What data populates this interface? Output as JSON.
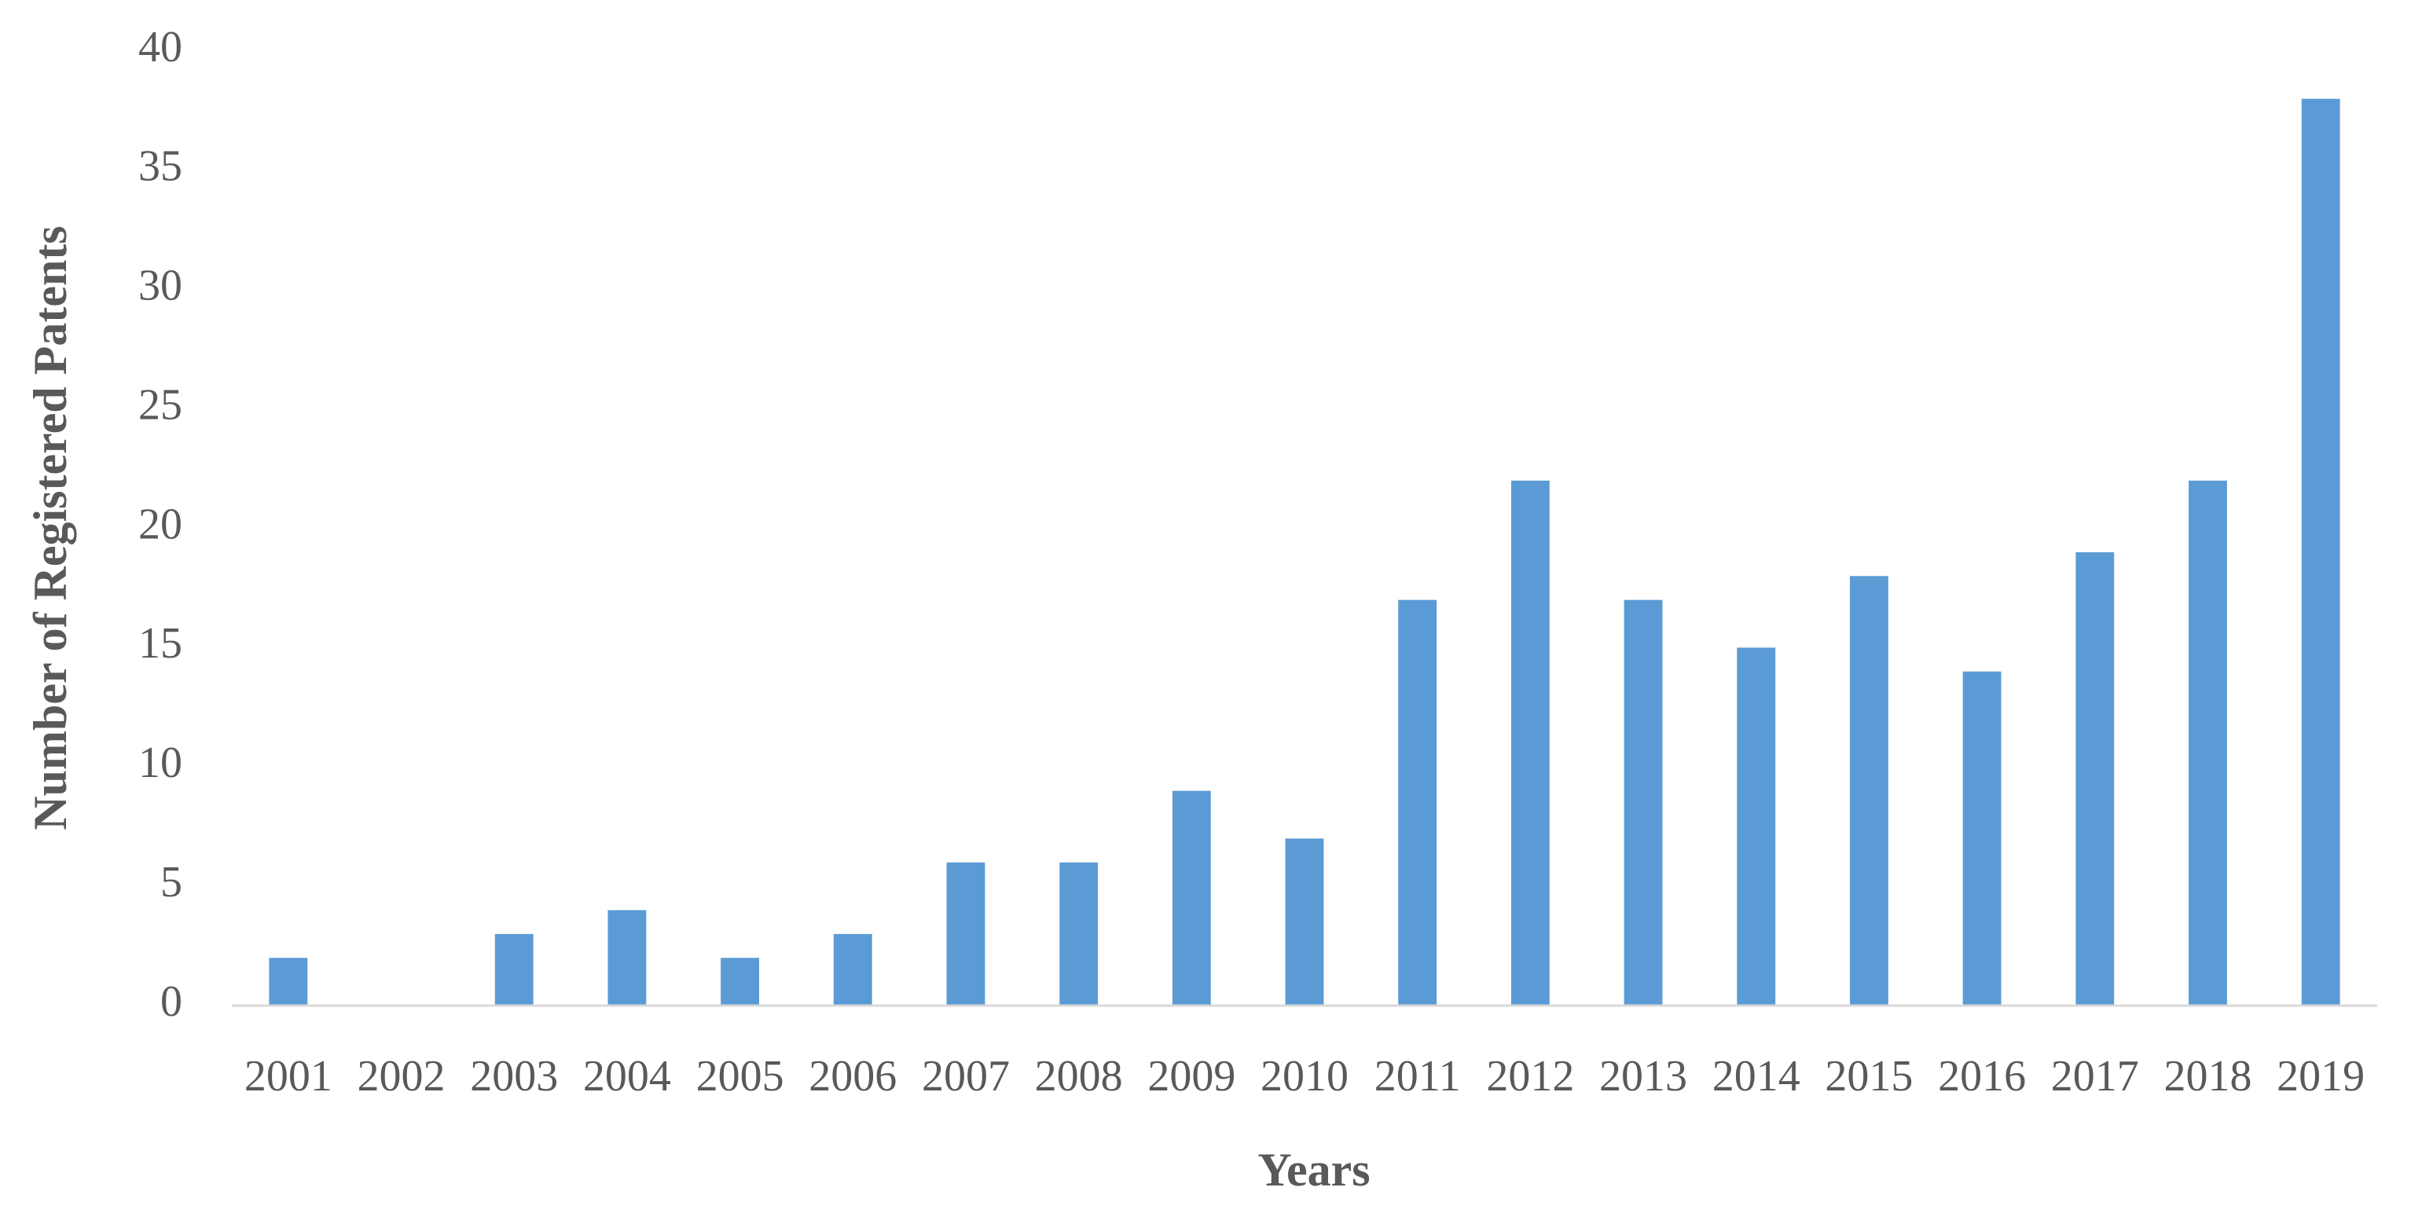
{
  "chart_data": {
    "type": "bar",
    "x_label": "Years",
    "y_label": "Number of Registered Patents",
    "categories": [
      "2001",
      "2002",
      "2003",
      "2004",
      "2005",
      "2006",
      "2007",
      "2008",
      "2009",
      "2010",
      "2011",
      "2012",
      "2013",
      "2014",
      "2015",
      "2016",
      "2017",
      "2018",
      "2019"
    ],
    "values": [
      2,
      0,
      3,
      4,
      2,
      3,
      6,
      6,
      9,
      7,
      17,
      22,
      17,
      15,
      18,
      14,
      19,
      22,
      38
    ],
    "color": "#5b9bd5",
    "ylim": [
      0,
      40
    ],
    "yticks": [
      0,
      5,
      10,
      15,
      20,
      25,
      30,
      35,
      40
    ],
    "grid": false
  }
}
